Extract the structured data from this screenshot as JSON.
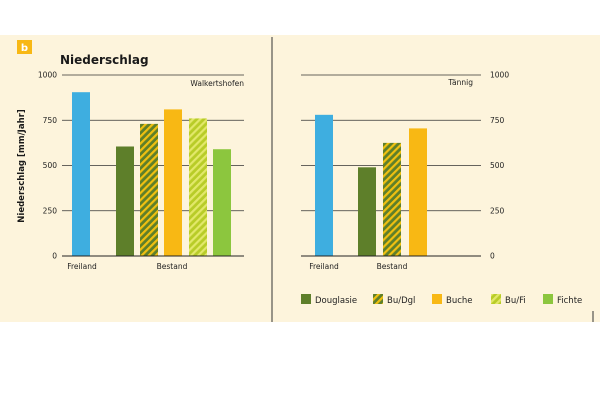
{
  "panel_letter": "b",
  "colors": {
    "freiland": "#3eaee0",
    "douglasie": "#5e7f2a",
    "mixed_dark": "#5e7f2a",
    "mixed_light": "#f0c010",
    "buche": "#f8b814",
    "fichte": "#8cc63e",
    "bufi_dark": "#b8cc28",
    "bufi_light": "#e2e86a",
    "badge": "#f8b814"
  },
  "chart_data": [
    {
      "type": "bar",
      "title": "Niederschlag",
      "site": "Walkertshofen",
      "ylabel": "Niederschlag [mm/Jahr]",
      "ylim": [
        0,
        1000
      ],
      "yticks": [
        0,
        250,
        500,
        750,
        1000
      ],
      "groups": [
        "Freiland",
        "Bestand"
      ],
      "bars": [
        {
          "category": "Freiland",
          "series": "Freiland",
          "value": 905
        },
        {
          "category": "Douglasie",
          "series": "Douglasie",
          "value": 605
        },
        {
          "category": "Bu/Dgl",
          "series": "Bu/Dgl",
          "value": 730
        },
        {
          "category": "Buche",
          "series": "Buche",
          "value": 810
        },
        {
          "category": "Bu/Fi",
          "series": "Bu/Fi",
          "value": 760
        },
        {
          "category": "Fichte",
          "series": "Fichte",
          "value": 590
        }
      ]
    },
    {
      "type": "bar",
      "site": "Tännig",
      "ylim": [
        0,
        1000
      ],
      "yticks": [
        0,
        250,
        500,
        750,
        1000
      ],
      "groups": [
        "Freiland",
        "Bestand"
      ],
      "bars": [
        {
          "category": "Freiland",
          "series": "Freiland",
          "value": 780
        },
        {
          "category": "Douglasie",
          "series": "Douglasie",
          "value": 490
        },
        {
          "category": "Bu/Dgl",
          "series": "Bu/Dgl",
          "value": 625
        },
        {
          "category": "Buche",
          "series": "Buche",
          "value": 705
        }
      ]
    }
  ],
  "legend": [
    {
      "label": "Douglasie",
      "style": "douglasie"
    },
    {
      "label": "Bu/Dgl",
      "style": "budgl"
    },
    {
      "label": "Buche",
      "style": "buche"
    },
    {
      "label": "Bu/Fi",
      "style": "bufi"
    },
    {
      "label": "Fichte",
      "style": "fichte"
    }
  ]
}
